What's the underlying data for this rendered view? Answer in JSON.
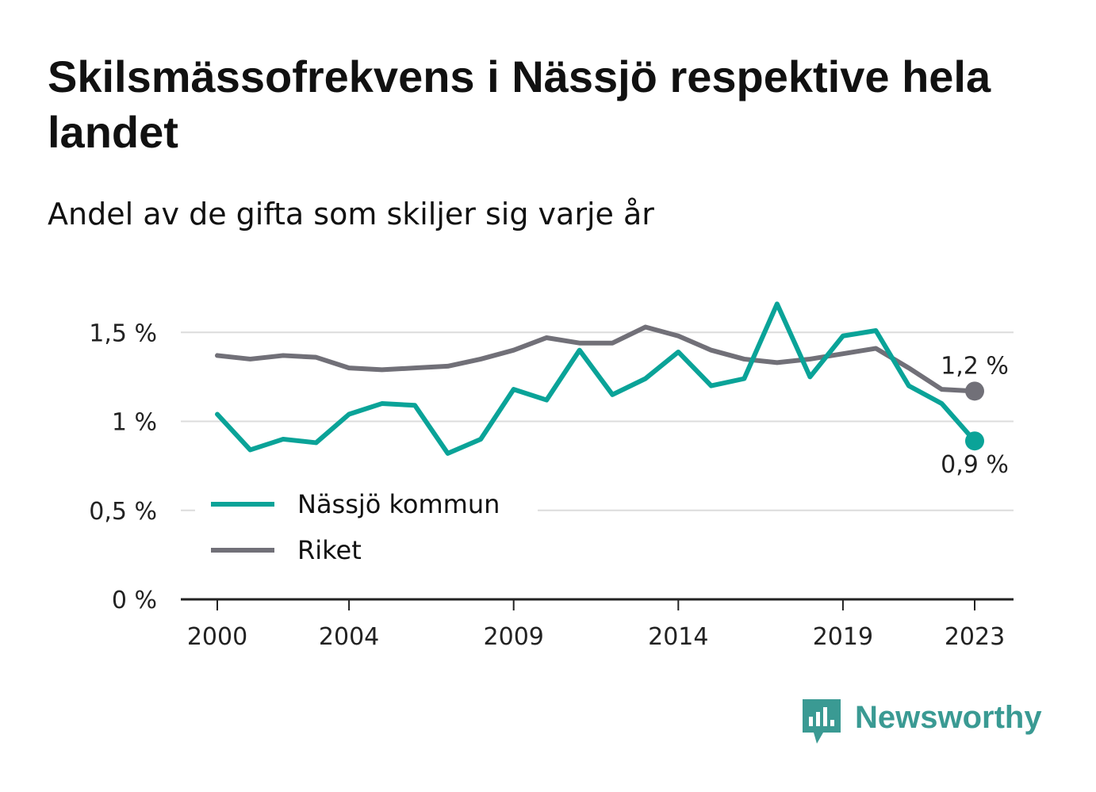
{
  "title": "Skilsmässofrekvens i Nässjö respektive hela landet",
  "subtitle": "Andel av de gifta som skiljer sig varje år",
  "brand": "Newsworthy",
  "colors": {
    "nassjo": "#0aa398",
    "riket": "#717078",
    "grid": "#dcdcdc",
    "brand": "#3a9a93"
  },
  "chart_data": {
    "type": "line",
    "x": [
      2000,
      2001,
      2002,
      2003,
      2004,
      2005,
      2006,
      2007,
      2008,
      2009,
      2010,
      2011,
      2012,
      2013,
      2014,
      2015,
      2016,
      2017,
      2018,
      2019,
      2020,
      2021,
      2022,
      2023
    ],
    "x_ticks": [
      "2000",
      "2004",
      "2009",
      "2014",
      "2019",
      "2023"
    ],
    "y_ticks": [
      "0 %",
      "0,5 %",
      "1 %",
      "1,5 %"
    ],
    "ylim": [
      0,
      1.6
    ],
    "grid": true,
    "legend_position": "bottom-left",
    "series": [
      {
        "name": "Nässjö kommun",
        "color_key": "nassjo",
        "values": [
          1.04,
          0.84,
          0.9,
          0.88,
          1.04,
          1.1,
          1.09,
          0.82,
          0.9,
          1.18,
          1.12,
          1.4,
          1.15,
          1.24,
          1.39,
          1.2,
          1.24,
          1.66,
          1.25,
          1.48,
          1.51,
          1.2,
          1.1,
          0.89
        ],
        "end_label": "0,9 %"
      },
      {
        "name": "Riket",
        "color_key": "riket",
        "values": [
          1.37,
          1.35,
          1.37,
          1.36,
          1.3,
          1.29,
          1.3,
          1.31,
          1.35,
          1.4,
          1.47,
          1.44,
          1.44,
          1.53,
          1.48,
          1.4,
          1.35,
          1.33,
          1.35,
          1.38,
          1.41,
          1.3,
          1.18,
          1.17
        ],
        "end_label": "1,2 %"
      }
    ]
  }
}
